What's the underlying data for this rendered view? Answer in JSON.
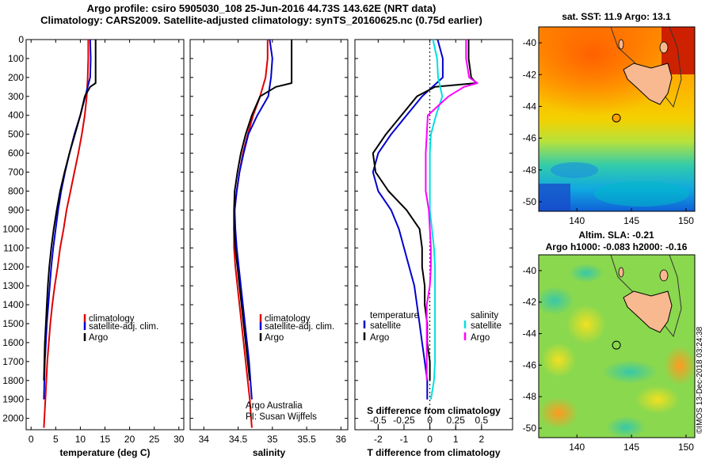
{
  "header": {
    "title_line1": "Argo profile: csiro 5905030_108 25-Jun-2016 44.73S 143.62E (NRT data)",
    "title_line2": "Climatology: CARS2009. Satellite-adjusted climatology: synTS_20160625.nc (0.75d earlier)"
  },
  "map_top": {
    "title": "sat. SST: 11.9 Argo: 13.1",
    "xticks": [
      "140",
      "145",
      "150"
    ],
    "yticks": [
      "-40",
      "-42",
      "-44",
      "-46",
      "-48",
      "-50"
    ],
    "argo_lon": 143.62,
    "argo_lat": -44.73
  },
  "map_bottom": {
    "title_line1": "Altim. SLA: -0.21",
    "title_line2": "Argo h1000: -0.083 h2000: -0.16",
    "xticks": [
      "140",
      "145",
      "150"
    ],
    "yticks": [
      "-40",
      "-42",
      "-44",
      "-46",
      "-48",
      "-50"
    ],
    "argo_lon": 143.62,
    "argo_lat": -44.73
  },
  "annotations": {
    "credit_line1": "Argo Australia",
    "credit_line2": "PI: Susan Wijffels",
    "stamp": "©IMOS 13-Dec-2018 03:24:38"
  },
  "legend": {
    "climatology": "climatology",
    "satellite_adj": "satellite-adj. clim.",
    "argo": "Argo",
    "temperature_head": "temperature",
    "salinity_head": "salinity",
    "satellite": "satellite",
    "argo_short": "Argo"
  },
  "colors": {
    "climatology": "#e00000",
    "satellite": "#0000d0",
    "argo": "#000000",
    "sal_satellite": "#00e0e0",
    "sal_argo": "#ff00ff"
  },
  "chart_data": [
    {
      "type": "line",
      "xlabel": "temperature (deg C)",
      "ylabel": "",
      "xlim": [
        -1,
        31
      ],
      "ylim": [
        2060,
        0
      ],
      "xticks": [
        "0",
        "5",
        "10",
        "15",
        "20",
        "25",
        "30"
      ],
      "yticks": [
        "0",
        "100",
        "200",
        "300",
        "400",
        "500",
        "600",
        "700",
        "800",
        "900",
        "1000",
        "1100",
        "1200",
        "1300",
        "1400",
        "1500",
        "1600",
        "1700",
        "1800",
        "1900",
        "2000"
      ],
      "series": [
        {
          "name": "climatology",
          "color_key": "climatology",
          "x": [
            11.6,
            11.6,
            11.5,
            11.3,
            10.9,
            10.3,
            9.6,
            8.8,
            8.0,
            7.2,
            6.6,
            5.9,
            5.4,
            4.8,
            4.3,
            3.9,
            3.6,
            3.3,
            3.1,
            2.9,
            2.7,
            2.6
          ],
          "y": [
            0,
            100,
            200,
            300,
            400,
            500,
            600,
            700,
            800,
            900,
            1000,
            1100,
            1200,
            1300,
            1400,
            1500,
            1600,
            1700,
            1800,
            1900,
            2000,
            2050
          ]
        },
        {
          "name": "satellite-adj. clim.",
          "color_key": "satellite",
          "x": [
            12.0,
            12.1,
            12.0,
            11.0,
            10.0,
            8.8,
            7.8,
            6.9,
            6.1,
            5.5,
            5.0,
            4.5,
            4.1,
            3.8,
            3.5,
            3.2,
            3.0,
            2.8,
            2.7,
            2.6
          ],
          "y": [
            0,
            100,
            200,
            300,
            400,
            500,
            600,
            700,
            800,
            900,
            1000,
            1100,
            1200,
            1300,
            1400,
            1500,
            1600,
            1700,
            1800,
            1900
          ]
        },
        {
          "name": "Argo",
          "color_key": "argo",
          "x": [
            13.1,
            13.1,
            13.1,
            13.1,
            12.0,
            10.9,
            10.0,
            8.9,
            7.8,
            6.8,
            5.9,
            5.2,
            4.6,
            4.1,
            3.7,
            3.4,
            3.2,
            3.0,
            2.8,
            2.7,
            2.6
          ],
          "y": [
            0,
            100,
            200,
            230,
            250,
            300,
            400,
            500,
            600,
            700,
            800,
            900,
            1000,
            1100,
            1200,
            1300,
            1400,
            1500,
            1600,
            1700,
            1800
          ]
        }
      ]
    },
    {
      "type": "line",
      "xlabel": "salinity",
      "ylabel": "",
      "xlim": [
        33.8,
        36.1
      ],
      "ylim": [
        2060,
        0
      ],
      "xticks": [
        "34",
        "34.5",
        "35",
        "35.5",
        "36"
      ],
      "yticks": [],
      "series": [
        {
          "name": "climatology",
          "color_key": "climatology",
          "x": [
            34.93,
            34.93,
            34.9,
            34.82,
            34.72,
            34.64,
            34.57,
            34.52,
            34.48,
            34.45,
            34.44,
            34.44,
            34.46,
            34.49,
            34.52,
            34.55,
            34.58,
            34.61,
            34.64,
            34.67,
            34.69,
            34.7
          ],
          "y": [
            0,
            100,
            200,
            300,
            400,
            500,
            600,
            700,
            800,
            900,
            1000,
            1100,
            1200,
            1300,
            1400,
            1500,
            1600,
            1700,
            1800,
            1900,
            2000,
            2050
          ]
        },
        {
          "name": "satellite-adj. clim.",
          "color_key": "satellite",
          "x": [
            34.96,
            35.0,
            34.98,
            34.94,
            34.78,
            34.65,
            34.58,
            34.52,
            34.48,
            34.45,
            34.46,
            34.48,
            34.51,
            34.54,
            34.57,
            34.6,
            34.63,
            34.66,
            34.68,
            34.7
          ],
          "y": [
            0,
            100,
            200,
            300,
            400,
            500,
            600,
            700,
            800,
            900,
            1000,
            1100,
            1200,
            1300,
            1400,
            1500,
            1600,
            1700,
            1800,
            1900
          ]
        },
        {
          "name": "Argo",
          "color_key": "argo",
          "x": [
            35.28,
            35.28,
            35.28,
            35.28,
            35.05,
            34.82,
            34.7,
            34.61,
            34.54,
            34.49,
            34.45,
            34.44,
            34.44,
            34.46,
            34.49,
            34.52,
            34.55,
            34.58,
            34.61,
            34.64,
            34.67
          ],
          "y": [
            0,
            100,
            200,
            230,
            250,
            300,
            400,
            500,
            600,
            700,
            800,
            900,
            1000,
            1100,
            1200,
            1300,
            1400,
            1500,
            1600,
            1700,
            1800
          ]
        }
      ]
    },
    {
      "type": "line",
      "xlabel": "T difference from climatology",
      "ylabel": "",
      "xlim": [
        -2.9,
        3.2
      ],
      "ylim": [
        2060,
        0
      ],
      "xticks": [
        "-2",
        "-1",
        "0",
        "1",
        "2"
      ],
      "top_axis_label": "S difference from climatology",
      "top_xticks": [
        "-0.5",
        "-0.25",
        "0",
        "0.25",
        "0.5"
      ],
      "series": [
        {
          "name": "temperature satellite",
          "color_key": "satellite",
          "x": [
            0.3,
            0.5,
            0.5,
            -0.3,
            -0.9,
            -1.5,
            -2.0,
            -2.2,
            -2.0,
            -1.5,
            -1.2,
            -1.0,
            -0.8,
            -0.6,
            -0.5,
            -0.4,
            -0.3,
            -0.2,
            -0.1,
            -0.1
          ],
          "y": [
            0,
            100,
            200,
            300,
            400,
            500,
            600,
            700,
            800,
            900,
            1000,
            1100,
            1200,
            1300,
            1400,
            1500,
            1600,
            1700,
            1800,
            1900
          ]
        },
        {
          "name": "temperature Argo",
          "color_key": "argo",
          "x": [
            1.5,
            1.5,
            1.6,
            1.8,
            0.2,
            -0.5,
            -1.1,
            -1.7,
            -2.2,
            -2.1,
            -1.6,
            -0.9,
            -0.4,
            -0.3,
            -0.3,
            -0.2,
            -0.2,
            -0.1,
            -0.1,
            0.0,
            0.0
          ],
          "y": [
            0,
            100,
            200,
            230,
            250,
            300,
            400,
            500,
            600,
            700,
            800,
            900,
            1000,
            1100,
            1200,
            1300,
            1400,
            1500,
            1600,
            1700,
            1800
          ]
        },
        {
          "name": "salinity satellite",
          "color_key": "sal_satellite",
          "x": [
            0.03,
            0.07,
            0.08,
            0.12,
            0.06,
            0.01,
            0.0,
            0.0,
            0.0,
            0.0,
            0.02,
            0.04,
            0.05,
            0.05,
            0.05,
            0.05,
            0.05,
            0.05,
            0.04,
            0.01
          ],
          "y": [
            0,
            100,
            200,
            300,
            400,
            500,
            600,
            700,
            800,
            900,
            1000,
            1100,
            1200,
            1300,
            1400,
            1500,
            1600,
            1700,
            1800,
            1900
          ]
        },
        {
          "name": "salinity Argo",
          "color_key": "sal_argo",
          "x": [
            0.35,
            0.35,
            0.38,
            0.46,
            0.33,
            0.18,
            -0.02,
            -0.03,
            -0.04,
            -0.04,
            -0.04,
            -0.01,
            0.0,
            0.01,
            0.01,
            0.0,
            -0.03,
            -0.03,
            -0.03,
            -0.03,
            -0.03
          ],
          "y": [
            0,
            100,
            200,
            230,
            250,
            300,
            400,
            500,
            600,
            700,
            800,
            900,
            1000,
            1100,
            1200,
            1300,
            1400,
            1500,
            1600,
            1700,
            1800
          ]
        }
      ]
    }
  ]
}
